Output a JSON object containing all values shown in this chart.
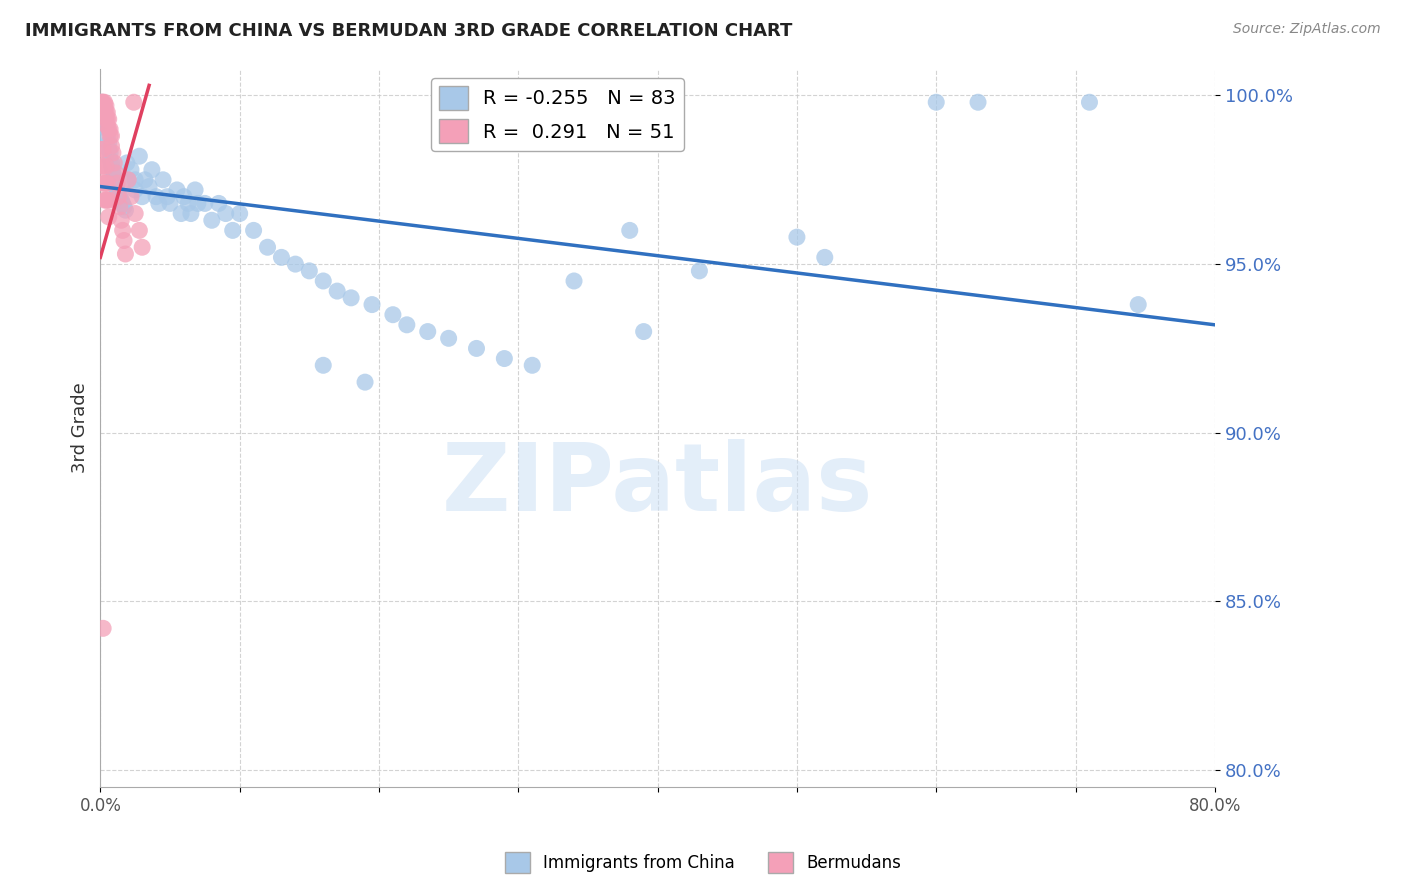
{
  "title": "IMMIGRANTS FROM CHINA VS BERMUDAN 3RD GRADE CORRELATION CHART",
  "source": "Source: ZipAtlas.com",
  "ylabel": "3rd Grade",
  "xlim": [
    0.0,
    0.8
  ],
  "ylim": [
    0.795,
    1.008
  ],
  "yticks": [
    0.8,
    0.85,
    0.9,
    0.95,
    1.0
  ],
  "ytick_labels": [
    "80.0%",
    "85.0%",
    "90.0%",
    "95.0%",
    "100.0%"
  ],
  "xticks": [
    0.0,
    0.1,
    0.2,
    0.3,
    0.4,
    0.5,
    0.6,
    0.7,
    0.8
  ],
  "xtick_labels": [
    "0.0%",
    "",
    "",
    "",
    "",
    "",
    "",
    "",
    "80.0%"
  ],
  "blue_R": -0.255,
  "blue_N": 83,
  "pink_R": 0.291,
  "pink_N": 51,
  "blue_color": "#a8c8e8",
  "pink_color": "#f4a0b8",
  "blue_line_color": "#3070c0",
  "pink_line_color": "#e04060",
  "legend_label_blue": "Immigrants from China",
  "legend_label_pink": "Bermudans",
  "watermark": "ZIPatlas",
  "blue_scatter_x": [
    0.001,
    0.002,
    0.003,
    0.003,
    0.004,
    0.004,
    0.005,
    0.005,
    0.006,
    0.006,
    0.007,
    0.007,
    0.008,
    0.008,
    0.009,
    0.009,
    0.01,
    0.01,
    0.011,
    0.011,
    0.012,
    0.013,
    0.014,
    0.015,
    0.016,
    0.017,
    0.018,
    0.019,
    0.02,
    0.022,
    0.025,
    0.025,
    0.028,
    0.03,
    0.032,
    0.035,
    0.037,
    0.04,
    0.042,
    0.045,
    0.048,
    0.05,
    0.055,
    0.058,
    0.06,
    0.063,
    0.065,
    0.068,
    0.07,
    0.075,
    0.08,
    0.085,
    0.09,
    0.095,
    0.1,
    0.11,
    0.12,
    0.13,
    0.14,
    0.15,
    0.16,
    0.17,
    0.18,
    0.195,
    0.21,
    0.22,
    0.235,
    0.25,
    0.27,
    0.29,
    0.31,
    0.34,
    0.38,
    0.43,
    0.5,
    0.52,
    0.6,
    0.63,
    0.71,
    0.745,
    0.39,
    0.16,
    0.19
  ],
  "blue_scatter_y": [
    0.998,
    0.997,
    0.996,
    0.994,
    0.993,
    0.991,
    0.99,
    0.988,
    0.986,
    0.984,
    0.983,
    0.981,
    0.98,
    0.979,
    0.978,
    0.977,
    0.976,
    0.975,
    0.974,
    0.973,
    0.972,
    0.971,
    0.97,
    0.969,
    0.968,
    0.967,
    0.966,
    0.98,
    0.975,
    0.978,
    0.975,
    0.972,
    0.982,
    0.97,
    0.975,
    0.973,
    0.978,
    0.97,
    0.968,
    0.975,
    0.97,
    0.968,
    0.972,
    0.965,
    0.97,
    0.968,
    0.965,
    0.972,
    0.968,
    0.968,
    0.963,
    0.968,
    0.965,
    0.96,
    0.965,
    0.96,
    0.955,
    0.952,
    0.95,
    0.948,
    0.945,
    0.942,
    0.94,
    0.938,
    0.935,
    0.932,
    0.93,
    0.928,
    0.925,
    0.922,
    0.92,
    0.945,
    0.96,
    0.948,
    0.958,
    0.952,
    0.998,
    0.998,
    0.998,
    0.938,
    0.93,
    0.92,
    0.915
  ],
  "pink_scatter_x": [
    0.001,
    0.001,
    0.002,
    0.002,
    0.002,
    0.003,
    0.003,
    0.003,
    0.004,
    0.004,
    0.004,
    0.005,
    0.005,
    0.005,
    0.006,
    0.006,
    0.007,
    0.007,
    0.008,
    0.008,
    0.009,
    0.01,
    0.011,
    0.012,
    0.013,
    0.014,
    0.015,
    0.016,
    0.017,
    0.018,
    0.02,
    0.022,
    0.025,
    0.028,
    0.03,
    0.001,
    0.001,
    0.001,
    0.002,
    0.002,
    0.003,
    0.003,
    0.004,
    0.004,
    0.004,
    0.005,
    0.005,
    0.006,
    0.006,
    0.024,
    0.002
  ],
  "pink_scatter_y": [
    0.998,
    0.998,
    0.998,
    0.997,
    0.996,
    0.998,
    0.997,
    0.995,
    0.997,
    0.995,
    0.993,
    0.995,
    0.993,
    0.991,
    0.993,
    0.99,
    0.99,
    0.988,
    0.988,
    0.985,
    0.983,
    0.98,
    0.977,
    0.974,
    0.97,
    0.967,
    0.963,
    0.96,
    0.957,
    0.953,
    0.975,
    0.97,
    0.965,
    0.96,
    0.955,
    0.984,
    0.979,
    0.974,
    0.984,
    0.979,
    0.974,
    0.969,
    0.979,
    0.974,
    0.969,
    0.974,
    0.969,
    0.969,
    0.964,
    0.998,
    0.842
  ],
  "blue_trend_x": [
    0.0,
    0.8
  ],
  "blue_trend_y": [
    0.973,
    0.932
  ],
  "pink_trend_x": [
    0.0,
    0.035
  ],
  "pink_trend_y": [
    0.952,
    1.003
  ]
}
